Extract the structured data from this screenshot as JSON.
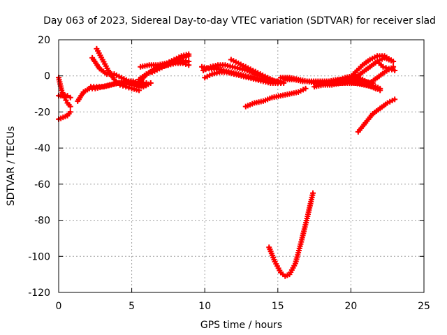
{
  "chart_data": {
    "type": "scatter",
    "title": "Day 063 of 2023, Sidereal Day-to-day VTEC variation (SDTVAR) for receiver slad",
    "xlabel": "GPS time / hours",
    "ylabel": "SDTVAR / TECUs",
    "xlim": [
      0,
      25
    ],
    "ylim": [
      -120,
      20
    ],
    "xticks": [
      0,
      5,
      10,
      15,
      20,
      25
    ],
    "yticks": [
      -120,
      -100,
      -80,
      -60,
      -40,
      -20,
      0,
      20
    ],
    "xtick_labels": [
      "0",
      "5",
      "10",
      "15",
      "20",
      "25"
    ],
    "ytick_labels": [
      "-120",
      "-100",
      "-80",
      "-60",
      "-40",
      "-20",
      "0",
      "20"
    ],
    "grid": true,
    "marker": "plus",
    "color": "#ff0000",
    "series": [
      {
        "name": "s1",
        "x": [
          0.0,
          0.2,
          0.4,
          0.6,
          0.8
        ],
        "y": [
          -1,
          -8,
          -12,
          -15,
          -17
        ]
      },
      {
        "name": "s2",
        "x": [
          0.0,
          0.3,
          0.6,
          0.8
        ],
        "y": [
          -11,
          -11,
          -11,
          -12
        ]
      },
      {
        "name": "s3",
        "x": [
          0.0,
          0.3,
          0.6,
          0.8
        ],
        "y": [
          -24,
          -23,
          -22,
          -20
        ]
      },
      {
        "name": "s4",
        "x": [
          1.3,
          1.7,
          2.1,
          2.5,
          3.0,
          3.5,
          4.0,
          4.5,
          5.0,
          5.5,
          6.0
        ],
        "y": [
          -14,
          -9,
          -7,
          -7,
          -6,
          -5,
          -4,
          -4,
          -5,
          -6,
          -5
        ]
      },
      {
        "name": "s5",
        "x": [
          2.6,
          3.0,
          3.4,
          3.8,
          4.2,
          4.6,
          5.0,
          5.5
        ],
        "y": [
          15,
          9,
          3,
          -2,
          -5,
          -6,
          -7,
          -8
        ]
      },
      {
        "name": "s6",
        "x": [
          2.2,
          2.6,
          3.1,
          3.6,
          4.1,
          4.6,
          5.1,
          5.6,
          6.0
        ],
        "y": [
          -6,
          -6,
          -6,
          -5,
          -4,
          -3,
          -3,
          -4,
          -4
        ]
      },
      {
        "name": "s7",
        "x": [
          2.3,
          2.8,
          3.3,
          3.8,
          4.3,
          4.8,
          5.3,
          5.8,
          6.3
        ],
        "y": [
          10,
          4,
          1,
          1,
          -1,
          -3,
          -5,
          -6,
          -4
        ]
      },
      {
        "name": "s8",
        "x": [
          5.6,
          6.2,
          6.8,
          7.4,
          8.0,
          8.5,
          8.9
        ],
        "y": [
          5,
          6,
          6,
          7,
          8,
          8,
          8
        ]
      },
      {
        "name": "s9",
        "x": [
          5.4,
          5.9,
          6.4,
          6.9,
          7.4,
          7.9,
          8.4,
          8.9
        ],
        "y": [
          -5,
          0,
          3,
          5,
          7,
          9,
          11,
          12
        ]
      },
      {
        "name": "s10",
        "x": [
          6.4,
          6.9,
          7.4,
          7.9,
          8.4,
          8.9
        ],
        "y": [
          2,
          4,
          6,
          8,
          10,
          11
        ]
      },
      {
        "name": "s11",
        "x": [
          5.5,
          6.0,
          6.5,
          7.0,
          7.5,
          8.0,
          8.5,
          8.9
        ],
        "y": [
          -2,
          1,
          3,
          5,
          6,
          7,
          7,
          6
        ]
      },
      {
        "name": "s12",
        "x": [
          9.8,
          10.3,
          10.8,
          11.3,
          11.8,
          12.3,
          12.8,
          13.3,
          13.8,
          14.3,
          14.8,
          15.2
        ],
        "y": [
          5,
          4,
          4,
          3,
          2,
          1,
          0,
          -1,
          -2,
          -2,
          -3,
          -3
        ]
      },
      {
        "name": "s13",
        "x": [
          9.9,
          10.4,
          10.9,
          11.4,
          11.9,
          12.4,
          12.9,
          13.4,
          13.9,
          14.4,
          14.9,
          15.4
        ],
        "y": [
          3,
          5,
          6,
          6,
          5,
          4,
          3,
          1,
          0,
          -2,
          -3,
          -4
        ]
      },
      {
        "name": "s14",
        "x": [
          10.0,
          10.5,
          11.0,
          11.5,
          12.0,
          12.5,
          13.0,
          13.5,
          14.0,
          14.5,
          15.0
        ],
        "y": [
          -1,
          1,
          2,
          2,
          1,
          0,
          -1,
          -2,
          -3,
          -4,
          -4
        ]
      },
      {
        "name": "s15",
        "x": [
          11.8,
          12.3,
          12.8,
          13.3,
          13.8,
          14.3,
          14.8,
          15.2
        ],
        "y": [
          9,
          7,
          5,
          3,
          1,
          -1,
          -3,
          -4
        ]
      },
      {
        "name": "s16",
        "x": [
          12.8,
          13.4,
          14.0,
          14.6,
          15.2,
          15.8,
          16.4,
          16.9
        ],
        "y": [
          -17,
          -15,
          -14,
          -12,
          -11,
          -10,
          -9,
          -7
        ]
      },
      {
        "name": "s17",
        "x": [
          15.2,
          15.8,
          16.4,
          17.0,
          17.6,
          18.2,
          18.8,
          19.4,
          20.0,
          20.6
        ],
        "y": [
          -1,
          -1,
          -2,
          -3,
          -4,
          -4,
          -4,
          -4,
          -3,
          -4
        ]
      },
      {
        "name": "s18",
        "x": [
          15.5,
          16.1,
          16.7,
          17.3,
          17.9,
          18.5,
          19.1,
          19.7,
          20.3,
          20.9,
          21.5
        ],
        "y": [
          -2,
          -2,
          -3,
          -3,
          -3,
          -3,
          -2,
          -2,
          -2,
          -3,
          -4
        ]
      },
      {
        "name": "s19",
        "x": [
          17.5,
          18.1,
          18.7,
          19.3,
          19.9,
          20.5,
          21.1,
          21.7
        ],
        "y": [
          -6,
          -5,
          -5,
          -4,
          -4,
          -4,
          -5,
          -7
        ]
      },
      {
        "name": "s20",
        "x": [
          18.5,
          19.1,
          19.7,
          20.3,
          20.9,
          21.5,
          22.0
        ],
        "y": [
          -3,
          -3,
          -3,
          -4,
          -5,
          -6,
          -8
        ]
      },
      {
        "name": "s21",
        "x": [
          19.0,
          19.6,
          20.2,
          20.8,
          21.4,
          22.0
        ],
        "y": [
          -3,
          -1,
          0,
          -2,
          -5,
          -7
        ]
      },
      {
        "name": "s22",
        "x": [
          19.8,
          20.3,
          20.8,
          21.3,
          21.8,
          22.3,
          22.9
        ],
        "y": [
          -2,
          2,
          6,
          9,
          11,
          11,
          8
        ]
      },
      {
        "name": "s23",
        "x": [
          20.3,
          20.8,
          21.3,
          21.8,
          22.3,
          22.9
        ],
        "y": [
          -1,
          2,
          5,
          8,
          10,
          8
        ]
      },
      {
        "name": "s24",
        "x": [
          21.3,
          21.8,
          22.3,
          22.9
        ],
        "y": [
          -4,
          -1,
          2,
          5
        ]
      },
      {
        "name": "s25",
        "x": [
          21.8,
          22.2,
          22.6,
          23.0
        ],
        "y": [
          8,
          5,
          4,
          3
        ]
      },
      {
        "name": "s26",
        "x": [
          20.5,
          21.0,
          21.5,
          22.0,
          22.5,
          23.0
        ],
        "y": [
          -31,
          -26,
          -21,
          -18,
          -15,
          -13
        ]
      },
      {
        "name": "s27",
        "x": [
          14.4,
          14.8,
          15.2,
          15.5,
          15.8,
          16.2,
          16.6,
          17.0,
          17.4
        ],
        "y": [
          -95,
          -103,
          -109,
          -111,
          -110,
          -104,
          -92,
          -79,
          -65
        ]
      }
    ]
  }
}
